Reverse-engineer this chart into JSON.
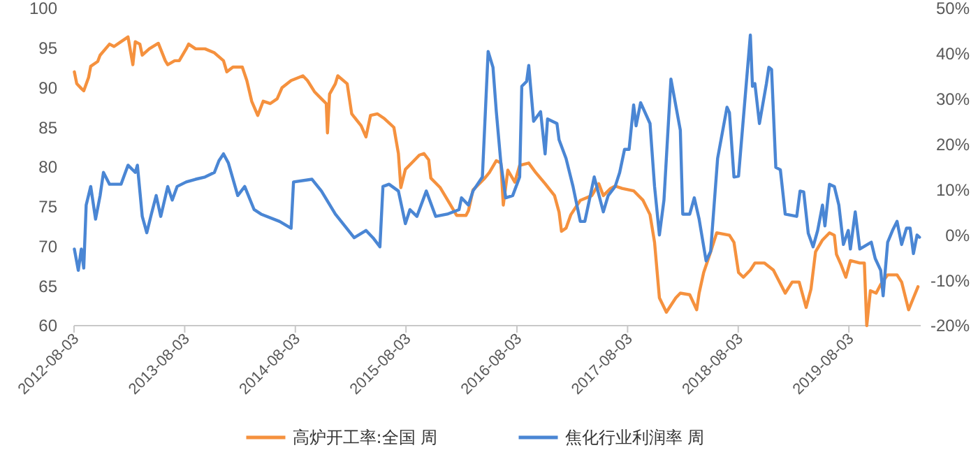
{
  "chart_data": {
    "type": "line",
    "xlim": [
      "2012-08-03",
      "2020-03-27"
    ],
    "xticks": [
      "2012-08-03",
      "2013-08-03",
      "2014-08-03",
      "2015-08-03",
      "2016-08-03",
      "2017-08-03",
      "2018-08-03",
      "2019-08-03"
    ],
    "ylim": [
      60,
      100
    ],
    "yticks": [
      60,
      65,
      70,
      75,
      80,
      85,
      90,
      95,
      100
    ],
    "y2lim": [
      -20,
      50
    ],
    "y2ticks": [
      {
        "value": -20,
        "label": "-20%"
      },
      {
        "value": -10,
        "label": "-10%"
      },
      {
        "value": 0,
        "label": "0%"
      },
      {
        "value": 10,
        "label": "10%"
      },
      {
        "value": 20,
        "label": "20%"
      },
      {
        "value": 30,
        "label": "30%"
      },
      {
        "value": 40,
        "label": "40%"
      },
      {
        "value": 50,
        "label": "50%"
      }
    ],
    "grid": false,
    "legend": "bottom",
    "line_style": "solid",
    "series": [
      {
        "name": "高炉开工率:全国 周",
        "color": "#f5913e",
        "x": [
          "2012-08-04",
          "2012-08-12",
          "2012-08-27",
          "2012-09-04",
          "2012-09-20",
          "2012-09-27",
          "2012-10-20",
          "2012-10-28",
          "2012-11-28",
          "2012-12-13",
          "2013-01-05",
          "2013-01-28",
          "2013-02-13",
          "2013-02-21",
          "2013-03-08",
          "2013-03-16",
          "2013-04-08",
          "2013-05-08",
          "2013-05-31",
          "2013-06-08",
          "2013-07-01",
          "2013-07-16",
          "2013-08-08",
          "2013-08-16",
          "2013-09-08",
          "2013-10-09",
          "2013-11-09",
          "2013-12-09",
          "2013-12-20",
          "2014-01-09",
          "2014-02-09",
          "2014-02-24",
          "2014-03-12",
          "2014-04-01",
          "2014-04-19",
          "2014-05-12",
          "2014-06-04",
          "2014-06-20",
          "2014-07-20",
          "2014-08-28",
          "2014-09-12",
          "2014-10-05",
          "2014-10-28",
          "2014-11-13",
          "2014-11-17",
          "2014-11-24",
          "2014-12-13",
          "2014-12-21",
          "2015-01-21",
          "2015-02-05",
          "2015-03-08",
          "2015-03-24",
          "2015-04-08",
          "2015-05-01",
          "2015-05-24",
          "2015-06-24",
          "2015-07-09",
          "2015-07-17",
          "2015-08-01",
          "2015-08-24",
          "2015-09-16",
          "2015-10-01",
          "2015-10-17",
          "2015-10-24",
          "2015-11-24",
          "2015-12-25",
          "2016-01-17",
          "2016-02-17",
          "2016-02-25",
          "2016-03-11",
          "2016-04-19",
          "2016-05-04",
          "2016-05-27",
          "2016-06-11",
          "2016-06-19",
          "2016-07-04",
          "2016-07-27",
          "2016-08-12",
          "2016-09-11",
          "2016-10-04",
          "2016-11-04",
          "2016-12-05",
          "2016-12-20",
          "2016-12-28",
          "2017-01-12",
          "2017-01-28",
          "2017-02-28",
          "2017-04-07",
          "2017-04-30",
          "2017-05-15",
          "2017-06-08",
          "2017-06-23",
          "2017-07-16",
          "2017-08-23",
          "2017-09-23",
          "2017-10-16",
          "2017-10-31",
          "2017-11-16",
          "2017-12-09",
          "2018-01-09",
          "2018-01-24",
          "2018-02-24",
          "2018-03-19",
          "2018-03-27",
          "2018-04-11",
          "2018-05-04",
          "2018-05-24",
          "2018-07-05",
          "2018-07-20",
          "2018-08-04",
          "2018-08-20",
          "2018-09-12",
          "2018-09-27",
          "2018-10-28",
          "2018-11-27",
          "2019-01-05",
          "2019-01-28",
          "2019-02-20",
          "2019-03-15",
          "2019-03-31",
          "2019-04-15",
          "2019-05-08",
          "2019-05-31",
          "2019-06-16",
          "2019-06-23",
          "2019-07-09",
          "2019-07-24",
          "2019-08-08",
          "2019-09-08",
          "2019-09-23",
          "2019-10-01",
          "2019-10-13",
          "2019-11-01",
          "2019-11-16",
          "2019-12-09",
          "2020-01-09",
          "2020-01-24",
          "2020-02-16",
          "2020-03-03",
          "2020-03-18"
        ],
        "values": [
          92.0,
          90.5,
          89.9,
          89.6,
          91.3,
          92.7,
          93.3,
          94.1,
          95.5,
          95.2,
          95.8,
          96.4,
          92.9,
          95.8,
          95.5,
          94.1,
          94.9,
          95.6,
          93.4,
          92.9,
          93.4,
          93.4,
          94.9,
          95.5,
          94.9,
          94.9,
          94.4,
          93.4,
          92.0,
          92.6,
          92.6,
          90.9,
          88.3,
          86.5,
          88.3,
          88.0,
          88.6,
          90.0,
          90.9,
          91.5,
          90.9,
          89.5,
          88.6,
          88.0,
          84.3,
          89.2,
          90.5,
          91.5,
          90.5,
          86.7,
          85.2,
          83.8,
          86.5,
          86.7,
          86.1,
          85.0,
          81.7,
          77.4,
          79.7,
          80.6,
          81.5,
          81.7,
          80.9,
          78.6,
          77.4,
          75.4,
          73.9,
          73.9,
          74.5,
          77.1,
          78.6,
          79.3,
          80.8,
          80.5,
          75.2,
          79.6,
          78.1,
          80.2,
          80.5,
          79.3,
          77.9,
          76.4,
          74.3,
          71.9,
          72.3,
          74.0,
          75.8,
          76.4,
          77.9,
          76.4,
          77.3,
          77.6,
          77.3,
          77.0,
          75.8,
          74.0,
          70.5,
          63.5,
          61.7,
          63.5,
          64.1,
          63.9,
          62.0,
          64.1,
          66.7,
          69.3,
          71.7,
          71.4,
          70.5,
          66.7,
          66.1,
          67.0,
          67.9,
          67.9,
          67.0,
          64.1,
          65.5,
          65.5,
          62.3,
          64.6,
          69.3,
          70.8,
          71.7,
          71.4,
          69.0,
          67.6,
          66.1,
          68.2,
          67.9,
          67.9,
          60.0,
          64.4,
          64.1,
          65.2,
          66.4,
          66.4,
          65.5,
          62.0,
          63.5,
          64.9
        ]
      },
      {
        "name": "焦化行业利润率 周",
        "color": "#4a86d4",
        "axis": "y2",
        "x": [
          "2012-08-04",
          "2012-08-17",
          "2012-08-27",
          "2012-09-04",
          "2012-09-12",
          "2012-09-27",
          "2012-10-13",
          "2012-10-28",
          "2012-11-08",
          "2012-11-28",
          "2013-01-05",
          "2013-01-28",
          "2013-02-21",
          "2013-02-28",
          "2013-03-16",
          "2013-03-31",
          "2013-04-15",
          "2013-05-01",
          "2013-05-16",
          "2013-06-08",
          "2013-06-23",
          "2013-07-09",
          "2013-08-08",
          "2013-09-08",
          "2013-10-09",
          "2013-11-09",
          "2013-11-24",
          "2013-12-09",
          "2013-12-25",
          "2014-01-25",
          "2014-02-17",
          "2014-03-20",
          "2014-04-12",
          "2014-06-12",
          "2014-07-20",
          "2014-07-28",
          "2014-09-27",
          "2014-10-28",
          "2014-12-13",
          "2015-02-13",
          "2015-03-24",
          "2015-04-16",
          "2015-05-09",
          "2015-05-19",
          "2015-06-08",
          "2015-07-09",
          "2015-08-01",
          "2015-08-16",
          "2015-09-08",
          "2015-10-09",
          "2015-11-09",
          "2015-12-17",
          "2016-01-25",
          "2016-02-02",
          "2016-02-25",
          "2016-03-11",
          "2016-04-11",
          "2016-04-30",
          "2016-05-16",
          "2016-05-27",
          "2016-06-11",
          "2016-06-27",
          "2016-07-20",
          "2016-08-12",
          "2016-08-19",
          "2016-09-04",
          "2016-09-11",
          "2016-09-27",
          "2016-10-20",
          "2016-11-04",
          "2016-11-12",
          "2016-12-13",
          "2016-12-20",
          "2017-01-12",
          "2017-02-04",
          "2017-02-28",
          "2017-03-15",
          "2017-04-15",
          "2017-05-15",
          "2017-05-31",
          "2017-06-23",
          "2017-07-08",
          "2017-07-24",
          "2017-08-08",
          "2017-08-23",
          "2017-08-31",
          "2017-09-15",
          "2017-10-16",
          "2017-10-31",
          "2017-11-16",
          "2017-12-01",
          "2017-12-24",
          "2018-01-24",
          "2018-02-01",
          "2018-02-24",
          "2018-03-11",
          "2018-03-27",
          "2018-04-19",
          "2018-05-04",
          "2018-05-27",
          "2018-06-27",
          "2018-07-05",
          "2018-07-20",
          "2018-08-04",
          "2018-09-12",
          "2018-09-19",
          "2018-09-27",
          "2018-10-12",
          "2018-11-04",
          "2018-11-12",
          "2018-11-21",
          "2018-12-05",
          "2018-12-20",
          "2019-01-05",
          "2019-02-12",
          "2019-02-23",
          "2019-03-07",
          "2019-03-22",
          "2019-04-07",
          "2019-04-22",
          "2019-05-08",
          "2019-05-16",
          "2019-05-31",
          "2019-06-16",
          "2019-07-01",
          "2019-07-16",
          "2019-08-01",
          "2019-08-08",
          "2019-08-24",
          "2019-09-08",
          "2019-10-16",
          "2019-10-29",
          "2019-11-16",
          "2019-11-24",
          "2019-12-09",
          "2019-12-25",
          "2020-01-09",
          "2020-01-24",
          "2020-02-09",
          "2020-02-21",
          "2020-03-03",
          "2020-03-15",
          "2020-03-23"
        ],
        "values": [
          -3.1,
          -7.8,
          -3.1,
          -7.3,
          6.6,
          10.7,
          3.5,
          8.7,
          13.8,
          11.2,
          11.2,
          15.4,
          13.8,
          15.4,
          4.1,
          0.5,
          4.6,
          8.7,
          4.1,
          10.7,
          7.7,
          10.7,
          11.7,
          12.3,
          12.8,
          13.8,
          16.4,
          17.9,
          15.9,
          8.7,
          10.7,
          5.6,
          4.6,
          3.0,
          1.5,
          11.7,
          12.3,
          9.7,
          4.6,
          -0.6,
          1.0,
          -0.6,
          -2.6,
          10.7,
          11.2,
          9.7,
          2.5,
          5.6,
          4.1,
          9.7,
          4.1,
          4.6,
          5.6,
          8.2,
          6.6,
          9.7,
          12.8,
          40.5,
          37.0,
          27.2,
          15.9,
          8.2,
          8.7,
          12.8,
          32.8,
          33.9,
          37.4,
          25.1,
          27.2,
          17.9,
          25.6,
          24.6,
          21.0,
          16.9,
          10.7,
          3.0,
          3.0,
          12.8,
          5.1,
          8.7,
          10.7,
          13.8,
          18.9,
          18.9,
          28.7,
          24.1,
          29.2,
          24.6,
          10.7,
          0.0,
          7.7,
          34.4,
          23.1,
          4.6,
          4.6,
          8.2,
          3.5,
          -5.7,
          -3.6,
          16.9,
          28.2,
          27.0,
          12.8,
          13.0,
          44.1,
          32.8,
          33.4,
          24.6,
          33.4,
          37.0,
          36.5,
          14.9,
          14.4,
          4.6,
          4.1,
          9.7,
          9.5,
          0.4,
          -2.6,
          1.0,
          6.6,
          2.0,
          11.2,
          10.7,
          6.6,
          -2.1,
          1.0,
          -3.1,
          5.1,
          -3.1,
          -1.6,
          -5.2,
          -7.8,
          -13.4,
          -1.6,
          1.0,
          3.0,
          -2.1,
          1.5,
          1.5,
          -4.1,
          0.0,
          -0.5
        ]
      }
    ]
  }
}
